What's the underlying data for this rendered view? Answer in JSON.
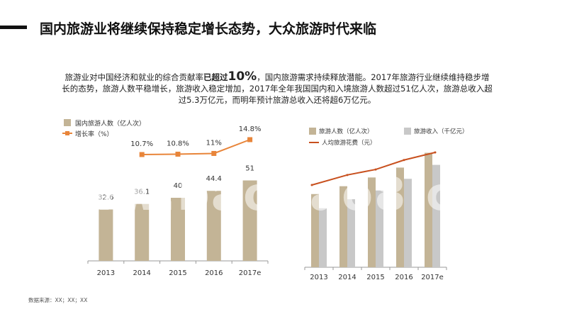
{
  "title": "国内旅游业将继续保持稳定增长态势，大众旅游时代来临",
  "intro": {
    "part1": "旅游业对中国经济和就业的综合贡献率",
    "highlight_pre": "已超过",
    "highlight_num": "10%",
    "part2": "，国内旅游需求持续释放潜能。2017年旅游行业继续维持稳步增长的态势，旅游人数平稳增长，旅游收入稳定增加，2017年全年我国国内和入境旅游人数超过51亿人次，旅游总收入超过5.3万亿元，而明年预计旅游总收入还将超6万亿元。"
  },
  "watermark": "www.baogao8.com",
  "source": "数据来源：XX；XX；XX",
  "colors": {
    "bar_primary": "#c3b496",
    "bar_secondary": "#c8c8c8",
    "line_growth": "#e8853a",
    "line_spend": "#c8501e"
  },
  "chart_data": [
    {
      "type": "bar",
      "categories": [
        "2013",
        "2014",
        "2015",
        "2016",
        "2017e"
      ],
      "series": [
        {
          "name": "国内旅游人数（亿人次）",
          "kind": "bar",
          "values": [
            32.6,
            36.1,
            40,
            44.4,
            51
          ],
          "labels": [
            "32.6",
            "36.1",
            "40",
            "44.4",
            "51"
          ]
        },
        {
          "name": "增长率（%）",
          "kind": "line",
          "values": [
            null,
            10.7,
            10.8,
            11,
            14.8
          ],
          "labels": [
            "",
            "10.7%",
            "10.8%",
            "11%",
            "14.8%"
          ]
        }
      ],
      "ylim": [
        0,
        80
      ],
      "legend": "top-left",
      "grid": false
    },
    {
      "type": "bar",
      "categories": [
        "2013",
        "2014",
        "2015",
        "2016",
        "2017e"
      ],
      "series": [
        {
          "name": "旅游人数（亿人次）",
          "kind": "bar",
          "values": [
            32.6,
            36.1,
            40,
            44.4,
            51
          ]
        },
        {
          "name": "旅游收入（千亿元）",
          "kind": "bar",
          "values": [
            26.3,
            30.3,
            34.2,
            39.4,
            45.6
          ]
        },
        {
          "name": "人均旅游花费（元）",
          "kind": "line",
          "values": [
            806,
            839,
            857,
            888,
            913
          ]
        }
      ],
      "ylim": [
        0,
        60
      ],
      "legend": "top",
      "grid": false
    }
  ]
}
